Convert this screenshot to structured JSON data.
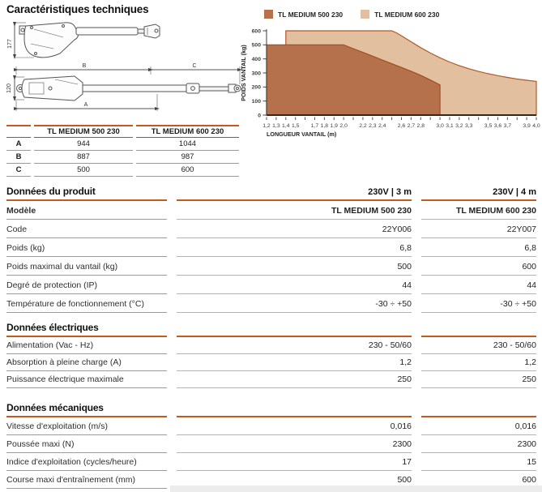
{
  "page": {
    "title": "Caractéristiques techniques"
  },
  "drawing": {
    "side_view_height": "177",
    "top_view_height": "120",
    "dim_a": "A",
    "dim_b": "B",
    "dim_c": "C"
  },
  "dimensions_table": {
    "columns": [
      "TL MEDIUM 500 230",
      "TL MEDIUM 600 230"
    ],
    "rows": [
      {
        "label": "A",
        "values": [
          "944",
          "1044"
        ]
      },
      {
        "label": "B",
        "values": [
          "887",
          "987"
        ]
      },
      {
        "label": "C",
        "values": [
          "500",
          "600"
        ]
      }
    ]
  },
  "chart_data": {
    "type": "area",
    "title": "",
    "xlabel": "LONGUEUR VANTAIL (m)",
    "ylabel": "POIDS VANTAIL (kg)",
    "xlim": [
      1.2,
      4.0
    ],
    "ylim": [
      0,
      600
    ],
    "y_ticks": [
      0,
      100,
      200,
      300,
      400,
      500,
      600
    ],
    "x_ticks": [
      [
        1.2,
        "1,2"
      ],
      [
        1.3,
        "1,3"
      ],
      [
        1.4,
        "1,4"
      ],
      [
        1.5,
        "1,5"
      ],
      [
        1.6,
        ""
      ],
      [
        1.7,
        "1,7"
      ],
      [
        1.8,
        "1,8"
      ],
      [
        1.9,
        "1,9"
      ],
      [
        2.0,
        "2,0"
      ],
      [
        2.1,
        ""
      ],
      [
        2.2,
        "2,2"
      ],
      [
        2.3,
        "2,3"
      ],
      [
        2.4,
        "2,4"
      ],
      [
        2.5,
        ""
      ],
      [
        2.6,
        "2,6"
      ],
      [
        2.7,
        "2,7"
      ],
      [
        2.8,
        "2,8"
      ],
      [
        2.9,
        ""
      ],
      [
        3.0,
        "3,0"
      ],
      [
        3.1,
        "3,1"
      ],
      [
        3.2,
        "3,2"
      ],
      [
        3.3,
        "3,3"
      ],
      [
        3.4,
        ""
      ],
      [
        3.5,
        "3,5"
      ],
      [
        3.6,
        "3,6"
      ],
      [
        3.7,
        "3,7"
      ],
      [
        3.8,
        ""
      ],
      [
        3.9,
        "3,9"
      ],
      [
        4.0,
        "4,0"
      ]
    ],
    "legend_position": "top",
    "grid": false,
    "series": [
      {
        "name": "TL MEDIUM 500 230",
        "color": "#B5714B",
        "stroke": "#A14E20",
        "points": [
          [
            1.2,
            500
          ],
          [
            2.0,
            500
          ],
          [
            2.1,
            473
          ],
          [
            2.2,
            447
          ],
          [
            2.3,
            420
          ],
          [
            2.4,
            393
          ],
          [
            2.5,
            366
          ],
          [
            2.6,
            339
          ],
          [
            2.7,
            312
          ],
          [
            2.8,
            283
          ],
          [
            2.9,
            250
          ],
          [
            3.0,
            215
          ],
          [
            3.0,
            0
          ]
        ]
      },
      {
        "name": "TL MEDIUM 600 230",
        "color": "#E2BF9E",
        "stroke": "#B05A28",
        "points": [
          [
            1.4,
            600
          ],
          [
            2.5,
            600
          ],
          [
            2.55,
            585
          ],
          [
            2.6,
            565
          ],
          [
            2.7,
            522
          ],
          [
            2.8,
            480
          ],
          [
            2.9,
            442
          ],
          [
            3.0,
            408
          ],
          [
            3.1,
            378
          ],
          [
            3.2,
            352
          ],
          [
            3.3,
            330
          ],
          [
            3.4,
            311
          ],
          [
            3.5,
            295
          ],
          [
            3.6,
            281
          ],
          [
            3.7,
            268
          ],
          [
            3.8,
            257
          ],
          [
            3.9,
            248
          ],
          [
            4.0,
            240
          ],
          [
            4.0,
            0
          ]
        ]
      }
    ]
  },
  "spec_table": {
    "col_headers": [
      "230V | 3 m",
      "230V | 4 m"
    ],
    "sections": [
      {
        "title": "Données du produit",
        "rows": [
          {
            "label": "Modèle",
            "values": [
              "TL MEDIUM 500 230",
              "TL MEDIUM 600 230"
            ],
            "bold": true
          },
          {
            "label": "Code",
            "values": [
              "22Y006",
              "22Y007"
            ]
          },
          {
            "label": "Poids (kg)",
            "values": [
              "6,8",
              "6,8"
            ]
          },
          {
            "label": "Poids maximal du vantail (kg)",
            "values": [
              "500",
              "600"
            ]
          },
          {
            "label": "Degré de protection (IP)",
            "values": [
              "44",
              "44"
            ]
          },
          {
            "label": "Température de fonctionnement (°C)",
            "values": [
              "-30 ÷ +50",
              "-30 ÷ +50"
            ]
          }
        ]
      },
      {
        "title": "Données électriques",
        "rows": [
          {
            "label": "Alimentation (Vac - Hz)",
            "values": [
              "230 - 50/60",
              "230 - 50/60"
            ]
          },
          {
            "label": "Absorption à pleine charge (A)",
            "values": [
              "1,2",
              "1,2"
            ]
          },
          {
            "label": "Puissance électrique maximale",
            "values": [
              "250",
              "250"
            ]
          }
        ]
      },
      {
        "title": "Données mécaniques",
        "rows": [
          {
            "label": "Vitesse d'exploitation (m/s)",
            "values": [
              "0,016",
              "0,016"
            ]
          },
          {
            "label": "Poussée maxi (N)",
            "values": [
              "2300",
              "2300"
            ]
          },
          {
            "label": "Indice d'exploitation (cycles/heure)",
            "values": [
              "17",
              "15"
            ]
          },
          {
            "label": "Course maxi d'entraînement (mm)",
            "values": [
              "500",
              "600"
            ]
          }
        ]
      }
    ]
  },
  "colors": {
    "accent": "#C35A1D",
    "axis": "#3c3c3c"
  }
}
